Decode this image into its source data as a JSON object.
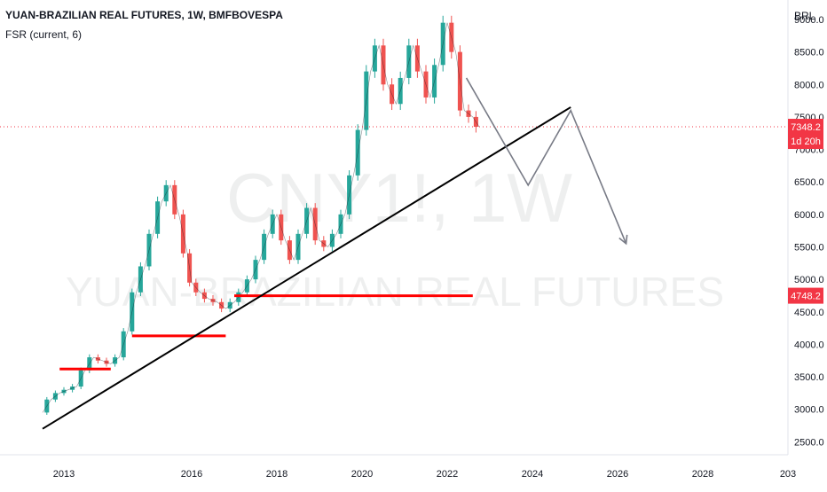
{
  "header": {
    "title": "YUAN-BRAZILIAN REAL FUTURES, 1W, BMFBOVESPA",
    "indicator": "FSR (current, 6)"
  },
  "watermark": {
    "symbol": "CNY1!, 1W",
    "name": "YUAN-BRAZILIAN REAL FUTURES"
  },
  "colors": {
    "up": "#26a69a",
    "down": "#ef5350",
    "level": "#ff0000",
    "trendline": "#000000",
    "projection": "#787b86",
    "price_tag": "#f23645"
  },
  "chart_data": {
    "type": "line",
    "series": [
      {
        "x": [
          2012.5,
          2012.7,
          2012.9,
          2013.1,
          2013.3,
          2013.5,
          2013.7,
          2013.9,
          2014.1,
          2014.3,
          2014.5,
          2014.7,
          2014.9,
          2015.1,
          2015.3,
          2015.5,
          2015.7,
          2015.9,
          2016.0,
          2016.2,
          2016.4,
          2016.6,
          2016.8,
          2017.0,
          2017.2,
          2017.4,
          2017.6,
          2017.8,
          2018.0,
          2018.2,
          2018.4,
          2018.6,
          2018.8,
          2019.0,
          2019.2,
          2019.4,
          2019.6,
          2019.8,
          2020.0,
          2020.2,
          2020.4,
          2020.6,
          2020.8,
          2021.0,
          2021.2,
          2021.4,
          2021.6,
          2021.8,
          2022.0,
          2022.2,
          2022.4,
          2022.6,
          2022.75
        ],
        "values": [
          2950,
          3150,
          3250,
          3300,
          3350,
          3600,
          3800,
          3750,
          3700,
          3800,
          4200,
          4800,
          5200,
          5700,
          6200,
          6450,
          6000,
          5400,
          4950,
          4800,
          4700,
          4650,
          4550,
          4650,
          4800,
          5000,
          5300,
          5700,
          6000,
          5600,
          5300,
          5700,
          6100,
          5600,
          5500,
          5700,
          6000,
          6600,
          7300,
          8200,
          8600,
          8000,
          7700,
          8100,
          8600,
          8200,
          7800,
          8300,
          8950,
          8500,
          7600,
          7500,
          7348.2
        ]
      }
    ],
    "xlim": [
      2011.5,
      2030
    ],
    "ylim": [
      2300,
      9300
    ],
    "x_ticks": [
      "2013",
      "2016",
      "2018",
      "2020",
      "2022",
      "2024",
      "2026",
      "2028",
      "203"
    ],
    "y_ticks": [
      "9000.0",
      "8500.0",
      "8000.0",
      "7500.0",
      "7000.0",
      "6500.0",
      "6000.0",
      "5500.0",
      "5000.0",
      "4500.0",
      "4000.0",
      "3500.0",
      "3000.0",
      "2500.0"
    ],
    "y_unit": "BRL",
    "last_price": "7348.2",
    "countdown": "1d 20h",
    "level_price": "4748.2",
    "trendline": [
      [
        2012.5,
        2700
      ],
      [
        2024.9,
        7650
      ]
    ],
    "support_levels": [
      {
        "x": [
          2012.9,
          2014.1
        ],
        "y": 3620
      },
      {
        "x": [
          2014.6,
          2016.8
        ],
        "y": 4130
      },
      {
        "x": [
          2017.0,
          2022.6
        ],
        "y": 4748.2
      }
    ],
    "projection": [
      [
        2022.45,
        8100
      ],
      [
        2023.9,
        6450
      ],
      [
        2024.9,
        7600
      ],
      [
        2026.2,
        5550
      ]
    ]
  }
}
